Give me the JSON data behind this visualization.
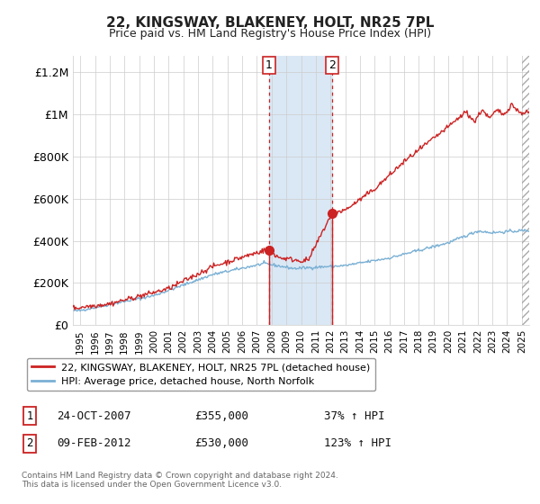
{
  "title": "22, KINGSWAY, BLAKENEY, HOLT, NR25 7PL",
  "subtitle": "Price paid vs. HM Land Registry's House Price Index (HPI)",
  "ylabel_ticks": [
    "£0",
    "£200K",
    "£400K",
    "£600K",
    "£800K",
    "£1M",
    "£1.2M"
  ],
  "ytick_vals": [
    0,
    200000,
    400000,
    600000,
    800000,
    1000000,
    1200000
  ],
  "ylim": [
    0,
    1280000
  ],
  "xlim_start": 1994.5,
  "xlim_end": 2025.5,
  "sale1_date": 2007.81,
  "sale1_price": 355000,
  "sale1_label": "1",
  "sale1_text": "24-OCT-2007",
  "sale1_pct": "37%",
  "sale2_date": 2012.11,
  "sale2_price": 530000,
  "sale2_label": "2",
  "sale2_text": "09-FEB-2012",
  "sale2_pct": "123%",
  "hpi_color": "#7ab0d4",
  "price_color": "#cc2222",
  "vline_color": "#cc2222",
  "shade_color": "#dae8f5",
  "legend_label_price": "22, KINGSWAY, BLAKENEY, HOLT, NR25 7PL (detached house)",
  "legend_label_hpi": "HPI: Average price, detached house, North Norfolk",
  "footer": "Contains HM Land Registry data © Crown copyright and database right 2024.\nThis data is licensed under the Open Government Licence v3.0.",
  "xtick_years": [
    1995,
    1996,
    1997,
    1998,
    1999,
    2000,
    2001,
    2002,
    2003,
    2004,
    2005,
    2006,
    2007,
    2008,
    2009,
    2010,
    2011,
    2012,
    2013,
    2014,
    2015,
    2016,
    2017,
    2018,
    2019,
    2020,
    2021,
    2022,
    2023,
    2024,
    2025
  ],
  "background_color": "#ffffff",
  "grid_color": "#cccccc"
}
